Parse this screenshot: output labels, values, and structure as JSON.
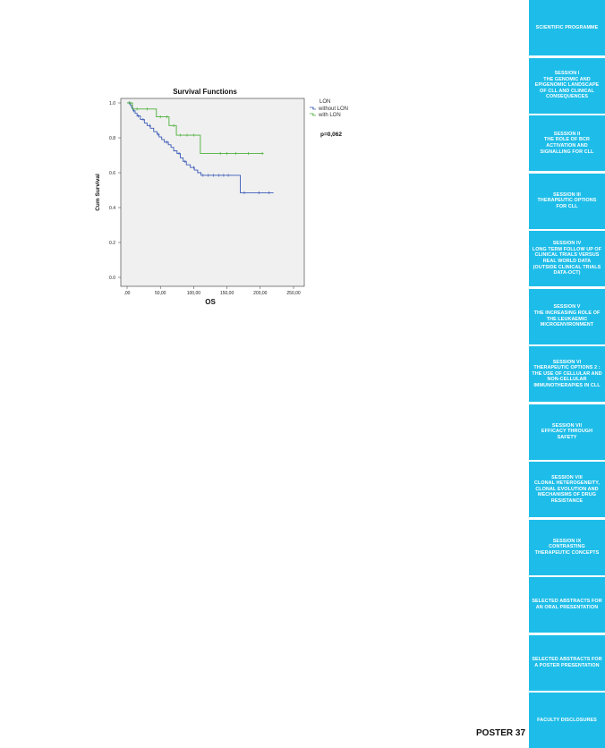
{
  "chart_data": {
    "type": "line",
    "title": "Survival Functions",
    "xlabel": "OS",
    "ylabel": "Cum Survival",
    "xlim": [
      0,
      250
    ],
    "ylim": [
      0,
      1
    ],
    "x_tick_labels": [
      ",00",
      "50,00",
      "100,00",
      "150,00",
      "200,00",
      "250,00"
    ],
    "y_tick_labels": [
      "0.0",
      "0.2",
      "0.4",
      "0.6",
      "0.8",
      "1.0"
    ],
    "legend": {
      "title": "LON",
      "entries": [
        "without LON",
        "with LON"
      ],
      "position": "right"
    },
    "annotation": "p=0,062",
    "series": [
      {
        "name": "without LON",
        "color": "#3b5bb7",
        "steps": [
          [
            0,
            1.0
          ],
          [
            5,
            0.985
          ],
          [
            7,
            0.97
          ],
          [
            9,
            0.955
          ],
          [
            12,
            0.94
          ],
          [
            15,
            0.925
          ],
          [
            20,
            0.905
          ],
          [
            26,
            0.885
          ],
          [
            30,
            0.87
          ],
          [
            35,
            0.855
          ],
          [
            40,
            0.835
          ],
          [
            45,
            0.82
          ],
          [
            48,
            0.805
          ],
          [
            52,
            0.79
          ],
          [
            56,
            0.775
          ],
          [
            62,
            0.76
          ],
          [
            66,
            0.745
          ],
          [
            70,
            0.725
          ],
          [
            75,
            0.71
          ],
          [
            80,
            0.685
          ],
          [
            84,
            0.665
          ],
          [
            89,
            0.645
          ],
          [
            95,
            0.63
          ],
          [
            101,
            0.615
          ],
          [
            106,
            0.6
          ],
          [
            111,
            0.585
          ],
          [
            170,
            0.485
          ],
          [
            220,
            0.485
          ]
        ],
        "censored": [
          [
            3,
            1.0
          ],
          [
            10,
            0.955
          ],
          [
            17,
            0.925
          ],
          [
            24,
            0.905
          ],
          [
            34,
            0.87
          ],
          [
            47,
            0.82
          ],
          [
            60,
            0.775
          ],
          [
            78,
            0.71
          ],
          [
            87,
            0.665
          ],
          [
            100,
            0.63
          ],
          [
            114,
            0.585
          ],
          [
            122,
            0.585
          ],
          [
            130,
            0.585
          ],
          [
            138,
            0.585
          ],
          [
            145,
            0.585
          ],
          [
            152,
            0.585
          ],
          [
            176,
            0.485
          ],
          [
            198,
            0.485
          ],
          [
            213,
            0.485
          ]
        ]
      },
      {
        "name": "with LON",
        "color": "#4caf3a",
        "steps": [
          [
            0,
            1.0
          ],
          [
            8,
            0.965
          ],
          [
            44,
            0.92
          ],
          [
            63,
            0.87
          ],
          [
            74,
            0.815
          ],
          [
            110,
            0.71
          ],
          [
            205,
            0.71
          ]
        ],
        "censored": [
          [
            4,
            1.0
          ],
          [
            15,
            0.965
          ],
          [
            30,
            0.965
          ],
          [
            50,
            0.92
          ],
          [
            60,
            0.92
          ],
          [
            70,
            0.87
          ],
          [
            80,
            0.815
          ],
          [
            90,
            0.815
          ],
          [
            100,
            0.815
          ],
          [
            140,
            0.71
          ],
          [
            150,
            0.71
          ],
          [
            163,
            0.71
          ],
          [
            182,
            0.71
          ],
          [
            203,
            0.71
          ]
        ]
      }
    ]
  },
  "sidebar": {
    "items": [
      {
        "label": "SCIENTIFIC PROGRAMME"
      },
      {
        "label": "SESSION I\nTHE GENOMIC AND EPIGENOMIC LANDSCAPE OF CLL AND CLINICAL CONSEQUENCES"
      },
      {
        "label": "SESSION II\nTHE ROLE OF BCR ACTIVATION AND SIGNALLING FOR CLL"
      },
      {
        "label": "SESSION III\nTHERAPEUTIC OPTIONS FOR CLL"
      },
      {
        "label": "SESSION IV\nLONG TERM FOLLOW UP OF CLINICAL TRIALS VERSUS REAL WORLD DATA (OUTSIDE CLINICAL TRIALS DATA-OCT)"
      },
      {
        "label": "SESSION V\nTHE INCREASING ROLE OF THE LEUKAEMIC MICROENVIRONMENT"
      },
      {
        "label": "SESSION VI\nTHERAPEUTIC OPTIONS 2 : THE USE OF CELLULAR AND NON-CELLULAR IMMUNOTHERAPIES IN CLL"
      },
      {
        "label": "SESSION VII\nEFFICACY THROUGH SAFETY"
      },
      {
        "label": "SESSION VIII\nCLONAL HETEROGENEITY, CLONAL EVOLUTION AND MECHANISMS OF DRUG RESISTANCE"
      },
      {
        "label": "SESSION IX\nCONTRASTING THERAPEUTIC CONCEPTS"
      },
      {
        "label": "SELECTED ABSTRACTS FOR AN ORAL PRESENTATION"
      },
      {
        "label": "SELECTED ABSTRACTS FOR A POSTER PRESENTATION"
      },
      {
        "label": "FACULTY DISCLOSURES"
      }
    ]
  },
  "poster_label": "POSTER 37"
}
